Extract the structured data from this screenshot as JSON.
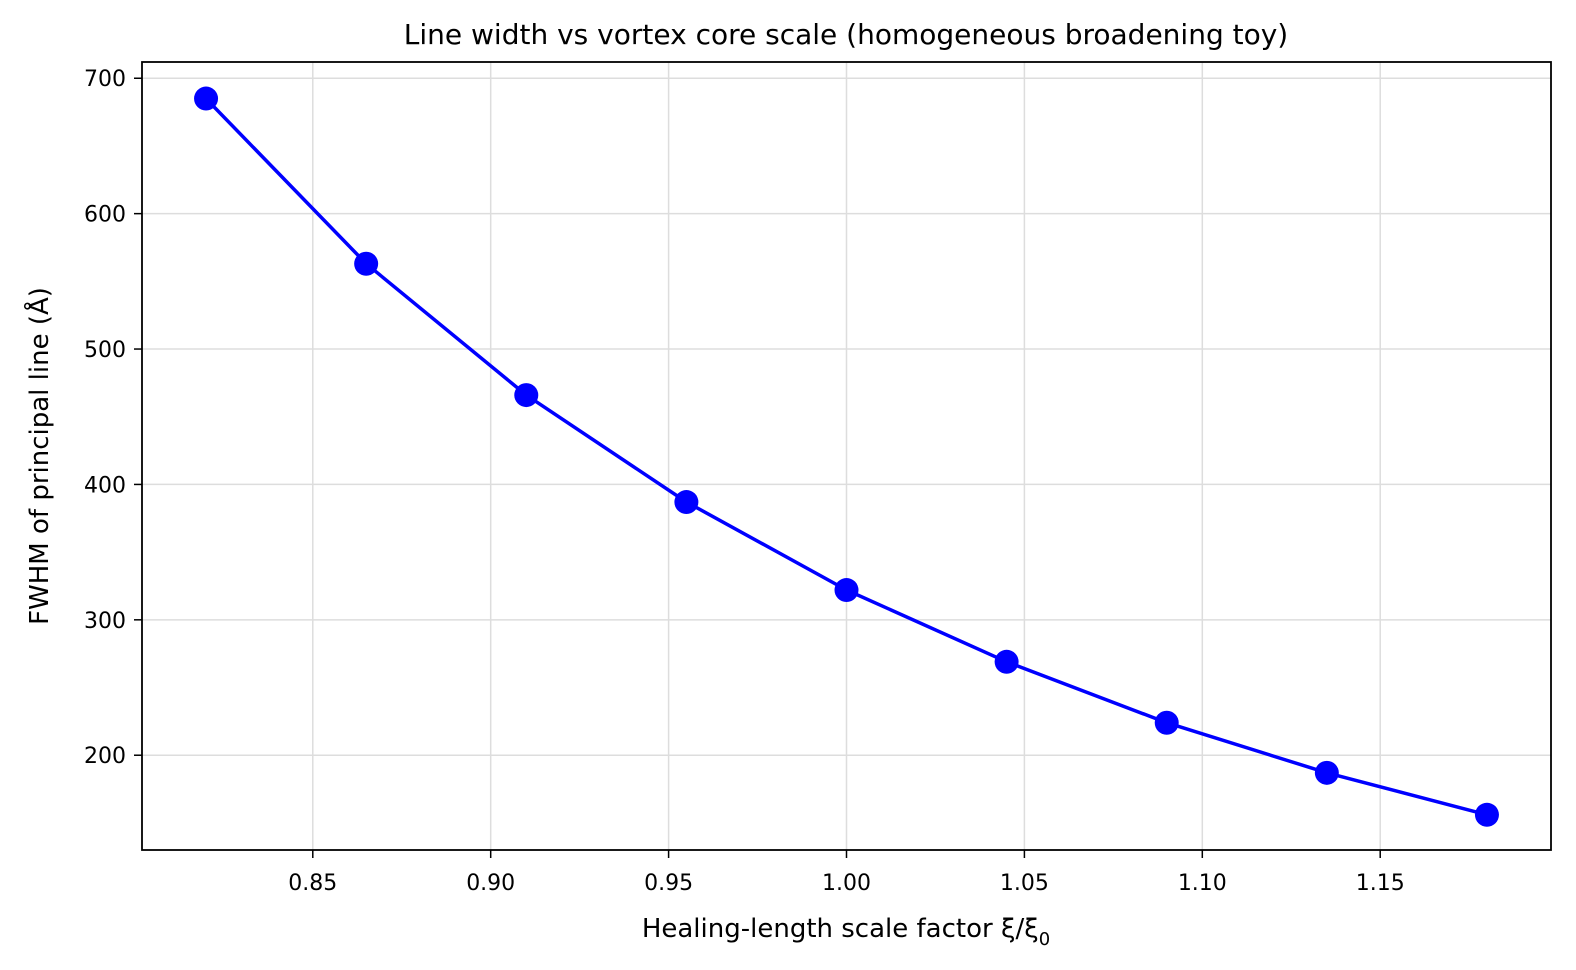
{
  "chart_data": {
    "type": "line",
    "title": "Line width vs vortex core scale (homogeneous broadening toy)",
    "xlabel": "Healing-length scale factor  ξ/ξ",
    "xlabel_subscript": "0",
    "ylabel": "FWHM of principal line (Å)",
    "xlim": [
      0.802,
      1.198
    ],
    "ylim": [
      130,
      712
    ],
    "x_ticks": [
      0.85,
      0.9,
      0.95,
      1.0,
      1.05,
      1.1,
      1.15
    ],
    "x_tick_labels": [
      "0.85",
      "0.90",
      "0.95",
      "1.00",
      "1.05",
      "1.10",
      "1.15"
    ],
    "y_ticks": [
      200,
      300,
      400,
      500,
      600,
      700
    ],
    "y_tick_labels": [
      "200",
      "300",
      "400",
      "500",
      "600",
      "700"
    ],
    "grid": true,
    "legend": "none",
    "series": [
      {
        "color": "#0000ff",
        "marker": "circle",
        "x": [
          0.82,
          0.865,
          0.91,
          0.955,
          1.0,
          1.045,
          1.09,
          1.135,
          1.18
        ],
        "y": [
          685,
          563,
          466,
          387,
          322,
          269,
          224,
          187,
          156
        ]
      }
    ]
  }
}
